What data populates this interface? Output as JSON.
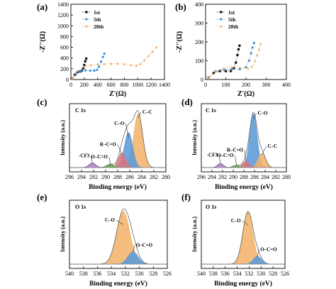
{
  "colors": {
    "s1": "#111111",
    "s5": "#3a8fd8",
    "s20": "#f0a050",
    "orange_fill": "#f2b36b",
    "blue_fill": "#5b9ad6",
    "red_fill": "#d9747e",
    "green_fill": "#5aaa3a",
    "purple_fill": "#b07cd1"
  },
  "panels": [
    {
      "letter": "(a)",
      "xlabel": "Z'(Ω)",
      "ylabel": "-Z''(Ω)"
    },
    {
      "letter": "(b)",
      "xlabel": "Z'(Ω)",
      "ylabel": "-Z''(Ω)"
    },
    {
      "letter": "(c)",
      "tag": "C 1s",
      "xlabel": "Binding energy (eV)",
      "ylabel": "Intensity (a.u.)"
    },
    {
      "letter": "(d)",
      "tag": "C 1s",
      "xlabel": "Binding energy (eV)",
      "ylabel": "Intensity (a.u.)"
    },
    {
      "letter": "(e)",
      "tag": "O 1s",
      "xlabel": "Binding energy (eV)",
      "ylabel": "Intensity (a.u.)"
    },
    {
      "letter": "(f)",
      "tag": "O 1s",
      "xlabel": "Binding energy (eV)",
      "ylabel": "Intensity (a.u.)"
    }
  ],
  "chart_data": [
    {
      "type": "scatter",
      "panel": "(a)",
      "xlabel": "Z'(Ω)",
      "ylabel": "-Z''(Ω)",
      "xlim": [
        0,
        1400
      ],
      "ylim": [
        0,
        1400
      ],
      "xticks": [
        "0",
        "200",
        "400",
        "600",
        "800",
        "1000",
        "1200",
        "1400"
      ],
      "yticks": [
        "0",
        "200",
        "400",
        "600",
        "800",
        "1000",
        "1200",
        "1400"
      ],
      "legend_position": "top-left",
      "series": [
        {
          "name": "1st",
          "color": "#111111",
          "marker": "square",
          "x": [
            20,
            60,
            100,
            140,
            165,
            185,
            200,
            215,
            230
          ],
          "y": [
            20,
            90,
            140,
            150,
            165,
            210,
            270,
            340,
            390
          ]
        },
        {
          "name": "5th",
          "color": "#3a8fd8",
          "marker": "circle",
          "x": [
            20,
            80,
            150,
            220,
            290,
            350,
            390,
            420,
            450,
            480,
            500
          ],
          "y": [
            20,
            110,
            160,
            170,
            165,
            165,
            180,
            240,
            330,
            420,
            480
          ]
        },
        {
          "name": "20th",
          "color": "#f0a050",
          "marker": "triangle",
          "x": [
            20,
            100,
            200,
            300,
            400,
            500,
            600,
            700,
            800,
            900,
            980,
            1040,
            1100,
            1160,
            1220,
            1280
          ],
          "y": [
            20,
            160,
            240,
            270,
            285,
            290,
            295,
            300,
            290,
            270,
            260,
            290,
            360,
            440,
            520,
            600
          ]
        }
      ]
    },
    {
      "type": "scatter",
      "panel": "(b)",
      "xlabel": "Z'(Ω)",
      "ylabel": "-Z''(Ω)",
      "xlim": [
        0,
        400
      ],
      "ylim": [
        0,
        400
      ],
      "xticks": [
        "0",
        "100",
        "200",
        "300",
        "400"
      ],
      "yticks": [
        "0",
        "100",
        "200",
        "300",
        "400"
      ],
      "legend_position": "top-left",
      "series": [
        {
          "name": "1st",
          "color": "#111111",
          "marker": "square",
          "x": [
            15,
            40,
            70,
            100,
            125,
            140,
            150,
            158,
            163,
            168
          ],
          "y": [
            10,
            35,
            45,
            45,
            45,
            60,
            90,
            130,
            160,
            180
          ]
        },
        {
          "name": "5th",
          "color": "#3a8fd8",
          "marker": "circle",
          "x": [
            15,
            50,
            90,
            130,
            170,
            200,
            215,
            225,
            232,
            240
          ],
          "y": [
            10,
            45,
            55,
            55,
            55,
            65,
            100,
            140,
            170,
            195
          ]
        },
        {
          "name": "20th",
          "color": "#f0a050",
          "marker": "triangle",
          "x": [
            15,
            50,
            90,
            130,
            170,
            210,
            230,
            245,
            255,
            265,
            272
          ],
          "y": [
            10,
            45,
            60,
            65,
            65,
            60,
            70,
            100,
            130,
            160,
            190
          ]
        }
      ]
    },
    {
      "type": "area",
      "panel": "(c)",
      "tag": "C 1s",
      "xlabel": "Binding energy (eV)",
      "ylabel": "Intensity (a.u.)",
      "xlim": [
        296,
        280
      ],
      "ylim": [
        0,
        1
      ],
      "xticks": [
        "296",
        "294",
        "292",
        "290",
        "288",
        "286",
        "284",
        "282",
        "280"
      ],
      "peaks": [
        {
          "label": "C–C",
          "center": 284.6,
          "height": 0.95,
          "width": 0.75,
          "color": "#f2b36b"
        },
        {
          "label": "C–O",
          "center": 286.2,
          "height": 0.62,
          "width": 0.7,
          "color": "#5b9ad6"
        },
        {
          "label": "R–C=O",
          "center": 287.3,
          "height": 0.26,
          "width": 0.6,
          "color": "#d9747e"
        },
        {
          "label": "O–C=O",
          "center": 289.2,
          "height": 0.06,
          "width": 0.6,
          "color": "#5aaa3a"
        },
        {
          "label": "-CF3",
          "center": 292.2,
          "height": 0.08,
          "width": 0.55,
          "color": "#b07cd1"
        }
      ]
    },
    {
      "type": "area",
      "panel": "(d)",
      "tag": "C 1s",
      "xlabel": "Binding energy (eV)",
      "ylabel": "Intensity (a.u.)",
      "xlim": [
        296,
        280
      ],
      "ylim": [
        0,
        1
      ],
      "xticks": [
        "296",
        "294",
        "292",
        "290",
        "288",
        "286",
        "284",
        "282",
        "280"
      ],
      "peaks": [
        {
          "label": "C–O",
          "center": 286.2,
          "height": 0.95,
          "width": 0.7,
          "color": "#5b9ad6"
        },
        {
          "label": "C–C",
          "center": 284.6,
          "height": 0.25,
          "width": 0.7,
          "color": "#f2b36b"
        },
        {
          "label": "R–C=O",
          "center": 287.6,
          "height": 0.12,
          "width": 0.6,
          "color": "#d9747e"
        },
        {
          "label": "O–C=O",
          "center": 289.4,
          "height": 0.04,
          "width": 0.6,
          "color": "#5aaa3a"
        },
        {
          "label": "-CF3",
          "center": 292.4,
          "height": 0.07,
          "width": 0.55,
          "color": "#b07cd1"
        }
      ]
    },
    {
      "type": "area",
      "panel": "(e)",
      "tag": "O 1s",
      "xlabel": "Binding energy (eV)",
      "ylabel": "Intensity (a.u.)",
      "xlim": [
        540,
        526
      ],
      "ylim": [
        0,
        1
      ],
      "xticks": [
        "540",
        "538",
        "536",
        "534",
        "532",
        "530",
        "528",
        "526"
      ],
      "peaks": [
        {
          "label": "C–O",
          "center": 532.3,
          "height": 0.93,
          "width": 0.95,
          "color": "#f2b36b"
        },
        {
          "label": "O–C=O",
          "center": 530.9,
          "height": 0.22,
          "width": 0.75,
          "color": "#5b9ad6"
        }
      ]
    },
    {
      "type": "area",
      "panel": "(f)",
      "tag": "O 1s",
      "xlabel": "Binding energy (eV)",
      "ylabel": "Intensity (a.u.)",
      "xlim": [
        540,
        526
      ],
      "ylim": [
        0,
        1
      ],
      "xticks": [
        "540",
        "538",
        "536",
        "534",
        "532",
        "530",
        "528",
        "526"
      ],
      "peaks": [
        {
          "label": "C–O",
          "center": 532.2,
          "height": 0.92,
          "width": 0.85,
          "color": "#f2b36b"
        },
        {
          "label": "O–C=O",
          "center": 530.6,
          "height": 0.14,
          "width": 0.7,
          "color": "#5b9ad6"
        }
      ]
    }
  ]
}
